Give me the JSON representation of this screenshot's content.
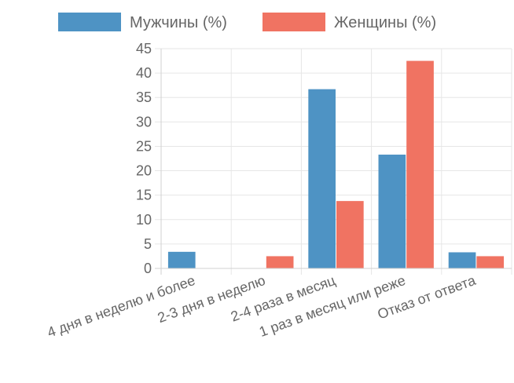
{
  "chart_data": {
    "type": "bar",
    "categories": [
      "4 дня в неделю и более",
      "2-3 дня в неделю",
      "2-4 раза в месяц",
      "1 раз в месяц или реже",
      "Отказ от ответа"
    ],
    "series": [
      {
        "name": "Мужчины (%)",
        "color": "#4e93c4",
        "values": [
          3.4,
          0,
          36.7,
          23.3,
          3.3
        ]
      },
      {
        "name": "Женщины (%)",
        "color": "#f07362",
        "values": [
          0,
          2.5,
          13.8,
          42.5,
          2.5
        ]
      }
    ],
    "ylim": [
      0,
      45
    ],
    "yticks": [
      0,
      5,
      10,
      15,
      20,
      25,
      30,
      35,
      40,
      45
    ],
    "grid": true,
    "legend_position": "top",
    "xlabel": "",
    "ylabel": "",
    "title": ""
  }
}
